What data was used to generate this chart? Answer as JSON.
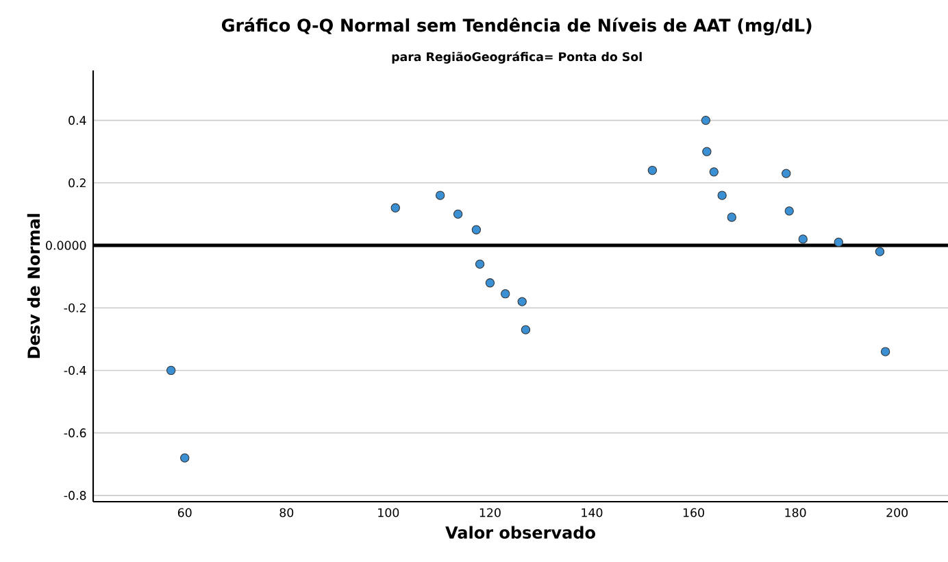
{
  "chart_data": {
    "type": "scatter",
    "title": "Gráfico Q-Q Normal sem Tendência de Níveis de AAT (mg/dL)",
    "subtitle": "para RegiãoGeográfica= Ponta do Sol",
    "xlabel": "Valor observado",
    "ylabel": "Desv de Normal",
    "x": [
      57.3,
      60,
      101.4,
      110.2,
      113.7,
      117.3,
      118,
      120,
      123,
      126.3,
      127,
      151.9,
      162.4,
      162.6,
      164,
      165.6,
      167.5,
      178.2,
      178.8,
      181.5,
      188.5,
      196.6,
      197.7
    ],
    "values": [
      -0.4,
      -0.68,
      0.12,
      0.16,
      0.1,
      0.05,
      -0.06,
      -0.12,
      -0.155,
      -0.18,
      -0.27,
      0.24,
      0.4,
      0.3,
      0.235,
      0.16,
      0.09,
      0.23,
      0.11,
      0.02,
      0.01,
      -0.02,
      -0.34
    ],
    "color": "#3b8fd3",
    "marker": "circle",
    "xlim": [
      42,
      210
    ],
    "ylim": [
      -0.82,
      0.56
    ],
    "xticks": [
      60,
      80,
      100,
      120,
      140,
      160,
      180,
      200
    ],
    "yticks": [
      -0.8,
      -0.6,
      -0.4,
      -0.2,
      {
        "value": 0,
        "label": "0.0000"
      },
      0.2,
      0.4
    ],
    "grid": "y",
    "ref_lines": [
      {
        "axis": "y",
        "value": 0,
        "color": "#000000"
      }
    ]
  }
}
